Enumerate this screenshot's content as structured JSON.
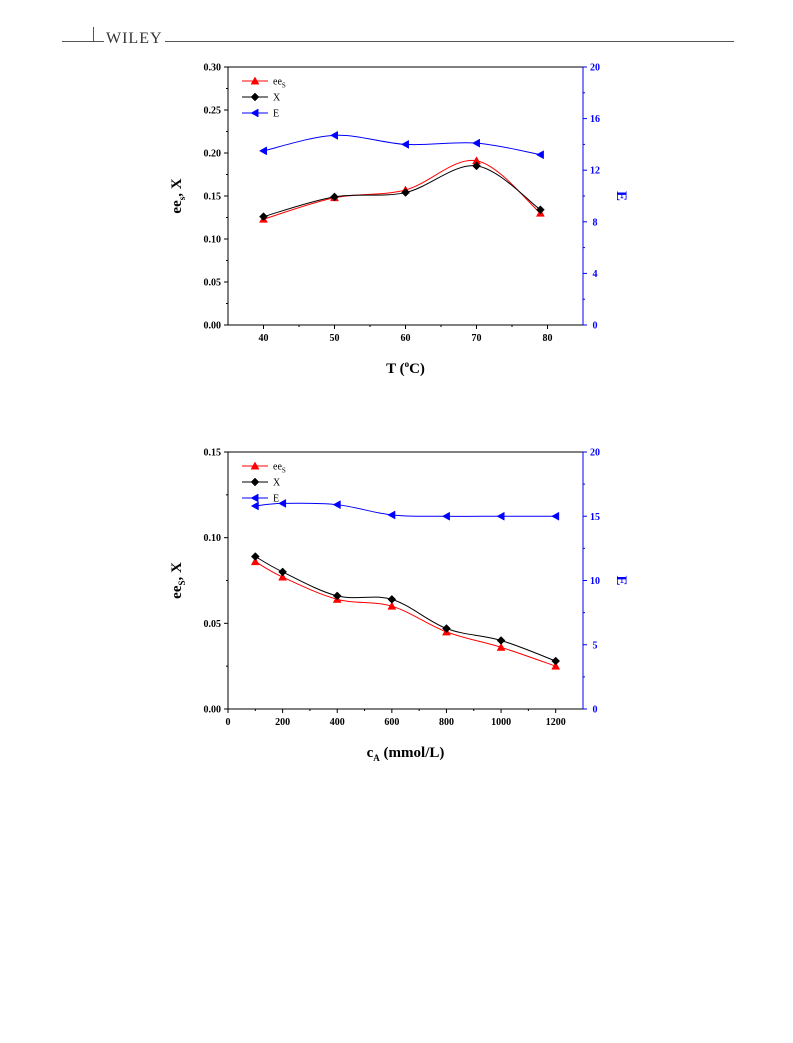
{
  "page": {
    "header_logo": "WILEY"
  },
  "chart_data": [
    {
      "type": "line",
      "x": [
        40,
        50,
        60,
        70,
        79
      ],
      "xlabel_main": "T (",
      "xlabel_sup": "o",
      "xlabel_tail": "C)",
      "ylabel_main": "ee",
      "ylabel_sub": "s",
      "ylabel_tail": ", X",
      "y2label": "E",
      "xlim": [
        35,
        85
      ],
      "xticks": [
        40,
        50,
        60,
        70,
        80
      ],
      "ylim": [
        0,
        0.3
      ],
      "yticks": [
        "0.00",
        "0.05",
        "0.10",
        "0.15",
        "0.20",
        "0.25",
        "0.30"
      ],
      "y2lim": [
        0,
        20
      ],
      "y2ticks": [
        "0",
        "4",
        "8",
        "12",
        "16",
        "20"
      ],
      "legend_position": "top-left",
      "series": [
        {
          "name_main": "ee",
          "name_sub": "S",
          "axis": "left",
          "color": "#ff0000",
          "marker": "triangle-up",
          "values": [
            0.123,
            0.148,
            0.157,
            0.191,
            0.13
          ]
        },
        {
          "name_main": "X",
          "name_sub": "",
          "axis": "left",
          "color": "#000000",
          "marker": "diamond",
          "values": [
            0.126,
            0.149,
            0.154,
            0.185,
            0.134
          ]
        },
        {
          "name_main": "E",
          "name_sub": "",
          "axis": "right",
          "color": "#0000ff",
          "marker": "triangle-left",
          "values": [
            13.5,
            14.7,
            14.0,
            14.1,
            13.2
          ]
        }
      ]
    },
    {
      "type": "line",
      "x": [
        100,
        200,
        400,
        600,
        800,
        1000,
        1200
      ],
      "xlabel_main": "c",
      "xlabel_sub": "A",
      "xlabel_tail": " (mmol/L)",
      "ylabel_main": "ee",
      "ylabel_sub": "S",
      "ylabel_tail": ", X",
      "y2label": "E",
      "xlim": [
        0,
        1300
      ],
      "xticks": [
        0,
        200,
        400,
        600,
        800,
        1000,
        1200
      ],
      "ylim": [
        0,
        0.15
      ],
      "yticks": [
        "0.00",
        "0.05",
        "0.10",
        "0.15"
      ],
      "y2lim": [
        0,
        20
      ],
      "y2ticks": [
        "0",
        "5",
        "10",
        "15",
        "20"
      ],
      "legend_position": "top-left",
      "series": [
        {
          "name_main": "ee",
          "name_sub": "S",
          "axis": "left",
          "color": "#ff0000",
          "marker": "triangle-up",
          "values": [
            0.086,
            0.077,
            0.064,
            0.06,
            0.045,
            0.036,
            0.025
          ]
        },
        {
          "name_main": "X",
          "name_sub": "",
          "axis": "left",
          "color": "#000000",
          "marker": "diamond",
          "values": [
            0.089,
            0.08,
            0.066,
            0.064,
            0.047,
            0.04,
            0.028
          ]
        },
        {
          "name_main": "E",
          "name_sub": "",
          "axis": "right",
          "color": "#0000ff",
          "marker": "triangle-left",
          "values": [
            15.8,
            16.0,
            15.9,
            15.1,
            15.0,
            15.0,
            15.0
          ]
        }
      ]
    }
  ]
}
